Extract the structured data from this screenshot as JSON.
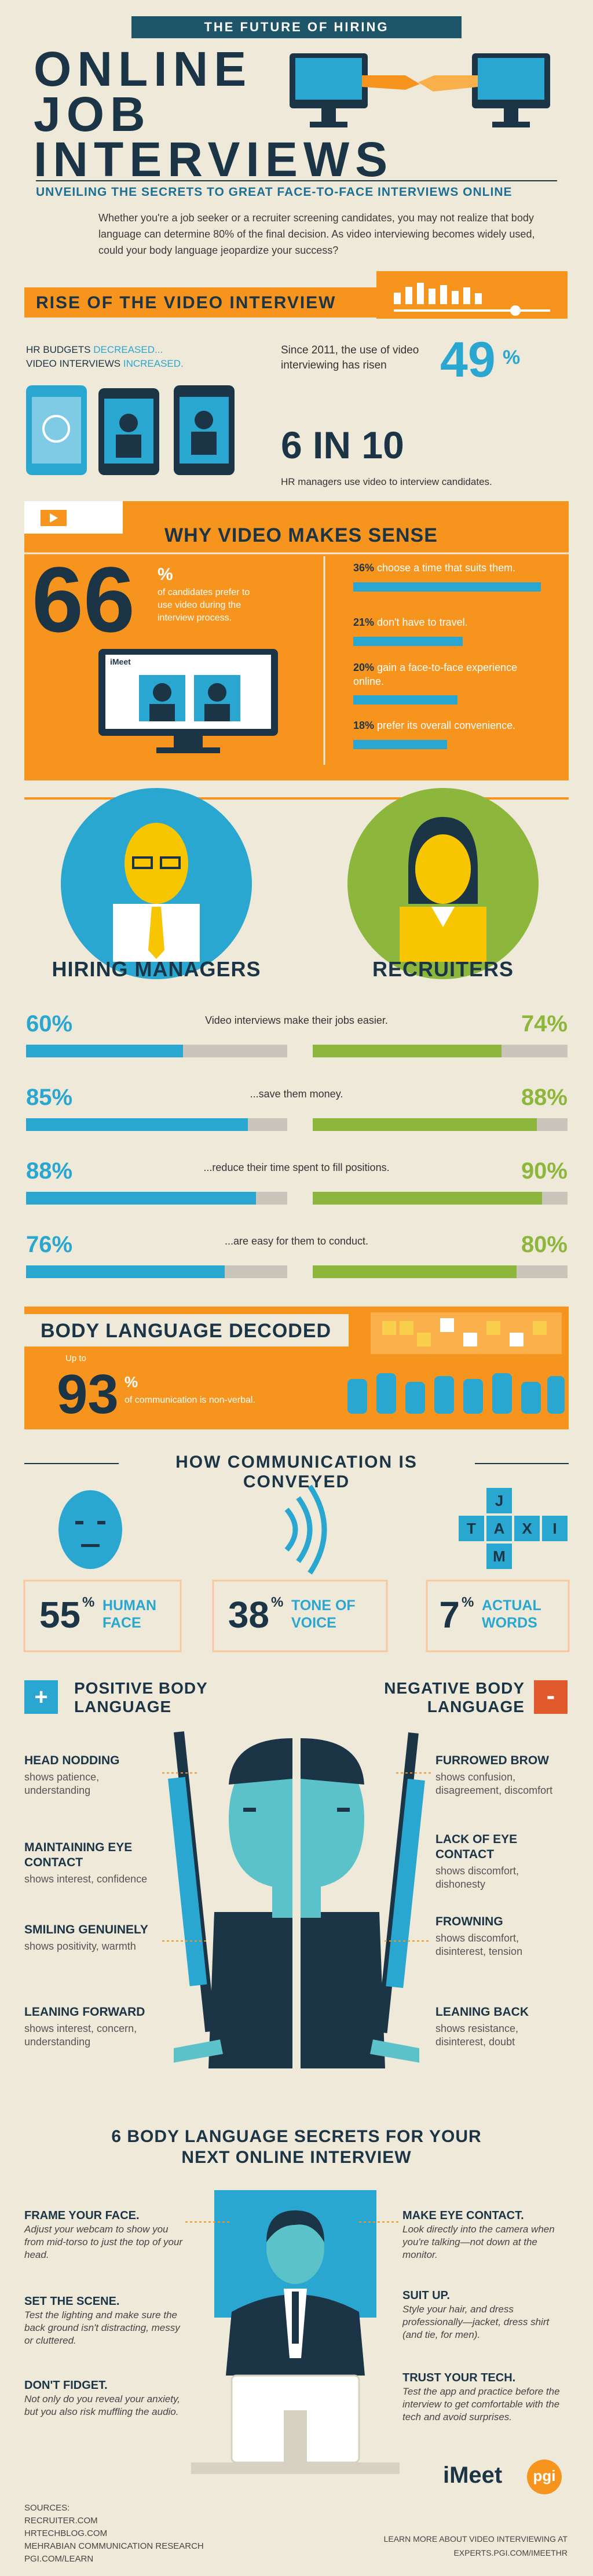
{
  "header": {
    "kicker": "THE FUTURE OF HIRING",
    "title": [
      "ONLINE",
      "JOB",
      "INTERVIEWS"
    ],
    "subtitle": "UNVEILING THE SECRETS TO GREAT FACE-TO-FACE INTERVIEWS ONLINE",
    "intro": "Whether you're a job seeker or a recruiter screening candidates, you may not realize that body language can determine 80% of the final decision. As video interviewing becomes widely used, could your body language jeopardize your success?"
  },
  "rise": {
    "title": "RISE OF THE VIDEO INTERVIEW",
    "budgets": [
      "HR BUDGETS",
      "DECREASED...",
      "VIDEO INTERVIEWS",
      "INCREASED."
    ],
    "growth_text": "Since 2011, the use of video interviewing has risen",
    "growth_value": 49,
    "growth_unit": "%",
    "ratio": "6 IN 10",
    "ratio_text": "HR managers use video to interview candidates."
  },
  "why": {
    "title": "WHY VIDEO MAKES SENSE",
    "big_value": 66,
    "big_unit": "%",
    "big_text": "of candidates prefer to use video during the interview process.",
    "screen_brand": "iMeet",
    "reasons": [
      {
        "value": 36,
        "label": "36%",
        "text": "choose a time that suits them."
      },
      {
        "value": 21,
        "label": "21%",
        "text": "don't have to travel."
      },
      {
        "value": 20,
        "label": "20%",
        "text": "gain a face-to-face experience online."
      },
      {
        "value": 18,
        "label": "18%",
        "text": "prefer its overall convenience."
      }
    ]
  },
  "roles": [
    "HIRING MANAGERS",
    "RECRUITERS"
  ],
  "comparison": {
    "rows": [
      {
        "text": "Video interviews make their jobs easier.",
        "hiring_managers": {
          "value": 60,
          "label": "60%"
        },
        "recruiters": {
          "value": 74,
          "label": "74%"
        }
      },
      {
        "text": "...save them money.",
        "hiring_managers": {
          "value": 85,
          "label": "85%"
        },
        "recruiters": {
          "value": 88,
          "label": "88%"
        }
      },
      {
        "text": "...reduce their time spent to fill positions.",
        "hiring_managers": {
          "value": 88,
          "label": "88%"
        },
        "recruiters": {
          "value": 90,
          "label": "90%"
        }
      },
      {
        "text": "...are easy for them to conduct.",
        "hiring_managers": {
          "value": 76,
          "label": "76%"
        },
        "recruiters": {
          "value": 80,
          "label": "80%"
        }
      }
    ]
  },
  "decoded": {
    "title": "BODY LANGUAGE DECODED",
    "prefix": "Up to",
    "value": 93,
    "unit": "%",
    "text": "of communication is non-verbal."
  },
  "conveyed": {
    "title": "HOW COMMUNICATION IS CONVEYED",
    "tiles": [
      "J",
      "T",
      "A",
      "X",
      "I",
      "M"
    ],
    "items": [
      {
        "value": 55,
        "unit": "%",
        "label": "HUMAN FACE"
      },
      {
        "value": 38,
        "unit": "%",
        "label": "TONE OF VOICE"
      },
      {
        "value": 7,
        "unit": "%",
        "label": "ACTUAL WORDS"
      }
    ]
  },
  "body_language": {
    "positive": {
      "sign": "+",
      "title": "POSITIVE BODY LANGUAGE",
      "items": [
        {
          "title": "HEAD NODDING",
          "text": "shows patience, understanding"
        },
        {
          "title": "MAINTAINING EYE CONTACT",
          "text": "shows interest, confidence"
        },
        {
          "title": "SMILING GENUINELY",
          "text": "shows positivity, warmth"
        },
        {
          "title": "LEANING FORWARD",
          "text": "shows interest, concern, understanding"
        }
      ]
    },
    "negative": {
      "sign": "-",
      "title": "NEGATIVE BODY LANGUAGE",
      "items": [
        {
          "title": "FURROWED BROW",
          "text": "shows confusion, disagreement, discomfort"
        },
        {
          "title": "LACK OF EYE CONTACT",
          "text": "shows discomfort, dishonesty"
        },
        {
          "title": "FROWNING",
          "text": "shows discomfort, disinterest, tension"
        },
        {
          "title": "LEANING BACK",
          "text": "shows resistance, disinterest, doubt"
        }
      ]
    }
  },
  "secrets": {
    "title": "6 BODY LANGUAGE SECRETS FOR YOUR NEXT ONLINE INTERVIEW",
    "left": [
      {
        "title": "FRAME YOUR FACE.",
        "text": "Adjust your webcam to show you from mid-torso to just the top of your head."
      },
      {
        "title": "SET THE SCENE.",
        "text": "Test the lighting and make sure the back ground isn't distracting, messy or cluttered."
      },
      {
        "title": "DON'T FIDGET.",
        "text": "Not only do you reveal your anxiety, but you also risk muffling the audio."
      }
    ],
    "right": [
      {
        "title": "MAKE EYE CONTACT.",
        "text": "Look directly into the camera when you're talking—not down at the monitor."
      },
      {
        "title": "SUIT UP.",
        "text": "Style your hair, and dress professionally—jacket, dress shirt (and tie, for men)."
      },
      {
        "title": "TRUST YOUR TECH.",
        "text": "Test the app and practice before the interview to get comfortable with the tech and avoid surprises."
      }
    ]
  },
  "footer": {
    "sources_title": "SOURCES:",
    "sources": [
      "RECRUITER.COM",
      "HRTECHBLOG.COM",
      "MEHRABIAN COMMUNICATION RESEARCH",
      "PGI.COM/LEARN"
    ],
    "logos": [
      "iMeet",
      "pgi"
    ],
    "cta": "LEARN MORE ABOUT VIDEO INTERVIEWING AT",
    "url": "EXPERTS.PGI.COM/IMEETHR"
  }
}
